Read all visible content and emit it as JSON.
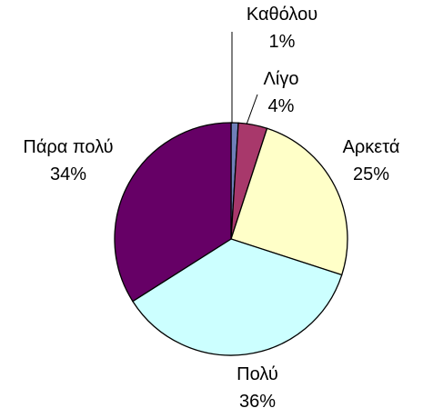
{
  "chart_data": {
    "type": "pie",
    "slices": [
      {
        "label": "Καθόλου",
        "value": 1,
        "value_label": "1%",
        "color": "#6f7fb8"
      },
      {
        "label": "Λίγο",
        "value": 4,
        "value_label": "4%",
        "color": "#a8386b"
      },
      {
        "label": "Αρκετά",
        "value": 25,
        "value_label": "25%",
        "color": "#ffffc8"
      },
      {
        "label": "Πολύ",
        "value": 36,
        "value_label": "36%",
        "color": "#ccffff"
      },
      {
        "label": "Πάρα πολύ",
        "value": 34,
        "value_label": "34%",
        "color": "#660066"
      }
    ],
    "start": "12 o'clock",
    "direction": "clockwise",
    "legend": "none"
  }
}
